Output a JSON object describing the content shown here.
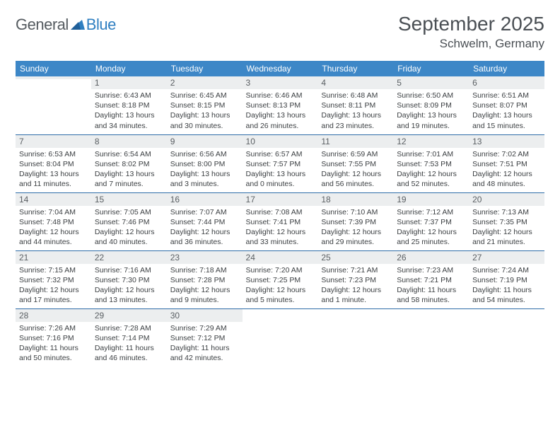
{
  "logo": {
    "text1": "General",
    "text2": "Blue"
  },
  "title": {
    "month": "September 2025",
    "location": "Schwelm, Germany"
  },
  "colors": {
    "header_bg": "#3d87c7",
    "header_fg": "#ffffff",
    "row_divider": "#2f6da8",
    "daynum_bg": "#eceeef",
    "logo_gray": "#555b60",
    "logo_blue": "#2f7fc1"
  },
  "weekdays": [
    "Sunday",
    "Monday",
    "Tuesday",
    "Wednesday",
    "Thursday",
    "Friday",
    "Saturday"
  ],
  "weeks": [
    [
      {
        "n": "",
        "lines": []
      },
      {
        "n": "1",
        "lines": [
          "Sunrise: 6:43 AM",
          "Sunset: 8:18 PM",
          "Daylight: 13 hours and 34 minutes."
        ]
      },
      {
        "n": "2",
        "lines": [
          "Sunrise: 6:45 AM",
          "Sunset: 8:15 PM",
          "Daylight: 13 hours and 30 minutes."
        ]
      },
      {
        "n": "3",
        "lines": [
          "Sunrise: 6:46 AM",
          "Sunset: 8:13 PM",
          "Daylight: 13 hours and 26 minutes."
        ]
      },
      {
        "n": "4",
        "lines": [
          "Sunrise: 6:48 AM",
          "Sunset: 8:11 PM",
          "Daylight: 13 hours and 23 minutes."
        ]
      },
      {
        "n": "5",
        "lines": [
          "Sunrise: 6:50 AM",
          "Sunset: 8:09 PM",
          "Daylight: 13 hours and 19 minutes."
        ]
      },
      {
        "n": "6",
        "lines": [
          "Sunrise: 6:51 AM",
          "Sunset: 8:07 PM",
          "Daylight: 13 hours and 15 minutes."
        ]
      }
    ],
    [
      {
        "n": "7",
        "lines": [
          "Sunrise: 6:53 AM",
          "Sunset: 8:04 PM",
          "Daylight: 13 hours and 11 minutes."
        ]
      },
      {
        "n": "8",
        "lines": [
          "Sunrise: 6:54 AM",
          "Sunset: 8:02 PM",
          "Daylight: 13 hours and 7 minutes."
        ]
      },
      {
        "n": "9",
        "lines": [
          "Sunrise: 6:56 AM",
          "Sunset: 8:00 PM",
          "Daylight: 13 hours and 3 minutes."
        ]
      },
      {
        "n": "10",
        "lines": [
          "Sunrise: 6:57 AM",
          "Sunset: 7:57 PM",
          "Daylight: 13 hours and 0 minutes."
        ]
      },
      {
        "n": "11",
        "lines": [
          "Sunrise: 6:59 AM",
          "Sunset: 7:55 PM",
          "Daylight: 12 hours and 56 minutes."
        ]
      },
      {
        "n": "12",
        "lines": [
          "Sunrise: 7:01 AM",
          "Sunset: 7:53 PM",
          "Daylight: 12 hours and 52 minutes."
        ]
      },
      {
        "n": "13",
        "lines": [
          "Sunrise: 7:02 AM",
          "Sunset: 7:51 PM",
          "Daylight: 12 hours and 48 minutes."
        ]
      }
    ],
    [
      {
        "n": "14",
        "lines": [
          "Sunrise: 7:04 AM",
          "Sunset: 7:48 PM",
          "Daylight: 12 hours and 44 minutes."
        ]
      },
      {
        "n": "15",
        "lines": [
          "Sunrise: 7:05 AM",
          "Sunset: 7:46 PM",
          "Daylight: 12 hours and 40 minutes."
        ]
      },
      {
        "n": "16",
        "lines": [
          "Sunrise: 7:07 AM",
          "Sunset: 7:44 PM",
          "Daylight: 12 hours and 36 minutes."
        ]
      },
      {
        "n": "17",
        "lines": [
          "Sunrise: 7:08 AM",
          "Sunset: 7:41 PM",
          "Daylight: 12 hours and 33 minutes."
        ]
      },
      {
        "n": "18",
        "lines": [
          "Sunrise: 7:10 AM",
          "Sunset: 7:39 PM",
          "Daylight: 12 hours and 29 minutes."
        ]
      },
      {
        "n": "19",
        "lines": [
          "Sunrise: 7:12 AM",
          "Sunset: 7:37 PM",
          "Daylight: 12 hours and 25 minutes."
        ]
      },
      {
        "n": "20",
        "lines": [
          "Sunrise: 7:13 AM",
          "Sunset: 7:35 PM",
          "Daylight: 12 hours and 21 minutes."
        ]
      }
    ],
    [
      {
        "n": "21",
        "lines": [
          "Sunrise: 7:15 AM",
          "Sunset: 7:32 PM",
          "Daylight: 12 hours and 17 minutes."
        ]
      },
      {
        "n": "22",
        "lines": [
          "Sunrise: 7:16 AM",
          "Sunset: 7:30 PM",
          "Daylight: 12 hours and 13 minutes."
        ]
      },
      {
        "n": "23",
        "lines": [
          "Sunrise: 7:18 AM",
          "Sunset: 7:28 PM",
          "Daylight: 12 hours and 9 minutes."
        ]
      },
      {
        "n": "24",
        "lines": [
          "Sunrise: 7:20 AM",
          "Sunset: 7:25 PM",
          "Daylight: 12 hours and 5 minutes."
        ]
      },
      {
        "n": "25",
        "lines": [
          "Sunrise: 7:21 AM",
          "Sunset: 7:23 PM",
          "Daylight: 12 hours and 1 minute."
        ]
      },
      {
        "n": "26",
        "lines": [
          "Sunrise: 7:23 AM",
          "Sunset: 7:21 PM",
          "Daylight: 11 hours and 58 minutes."
        ]
      },
      {
        "n": "27",
        "lines": [
          "Sunrise: 7:24 AM",
          "Sunset: 7:19 PM",
          "Daylight: 11 hours and 54 minutes."
        ]
      }
    ],
    [
      {
        "n": "28",
        "lines": [
          "Sunrise: 7:26 AM",
          "Sunset: 7:16 PM",
          "Daylight: 11 hours and 50 minutes."
        ]
      },
      {
        "n": "29",
        "lines": [
          "Sunrise: 7:28 AM",
          "Sunset: 7:14 PM",
          "Daylight: 11 hours and 46 minutes."
        ]
      },
      {
        "n": "30",
        "lines": [
          "Sunrise: 7:29 AM",
          "Sunset: 7:12 PM",
          "Daylight: 11 hours and 42 minutes."
        ]
      },
      {
        "n": "",
        "lines": []
      },
      {
        "n": "",
        "lines": []
      },
      {
        "n": "",
        "lines": []
      },
      {
        "n": "",
        "lines": []
      }
    ]
  ]
}
